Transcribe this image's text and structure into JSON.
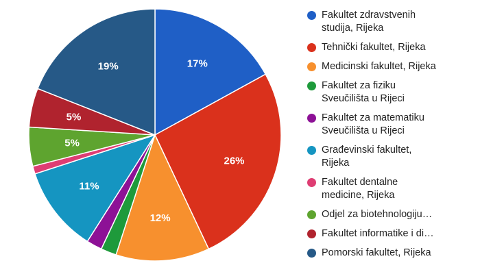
{
  "chart_data": {
    "type": "pie",
    "slices": [
      {
        "label": "Fakultet zdravstvenih\nstudija, Rijeka",
        "value": 17,
        "value_label": "17%",
        "color": "#1f5fc6"
      },
      {
        "label": "Tehnički fakultet, Rijeka",
        "value": 26,
        "value_label": "26%",
        "color": "#da311c"
      },
      {
        "label": "Medicinski fakultet, Rijeka",
        "value": 12,
        "value_label": "12%",
        "color": "#f7902e"
      },
      {
        "label": "Fakultet za fiziku\nSveučilišta u Rijeci",
        "value": 2,
        "value_label": "",
        "color": "#1e9a3b"
      },
      {
        "label": "Fakultet za matematiku\nSveučilišta u Rijeci",
        "value": 2,
        "value_label": "",
        "color": "#8d1196"
      },
      {
        "label": "Građevinski fakultet,\nRijeka",
        "value": 11,
        "value_label": "11%",
        "color": "#1595c1"
      },
      {
        "label": "Fakultet dentalne\nmedicine, Rijeka",
        "value": 1,
        "value_label": "",
        "color": "#de3d73"
      },
      {
        "label": "Odjel za biotehnologiju…",
        "value": 5,
        "value_label": "5%",
        "color": "#5ea42f"
      },
      {
        "label": "Fakultet informatike i di…",
        "value": 5,
        "value_label": "5%",
        "color": "#b0232e"
      },
      {
        "label": "Pomorski fakultet, Rijeka",
        "value": 19,
        "value_label": "19%",
        "color": "#265987"
      }
    ],
    "legend_position": "right"
  }
}
